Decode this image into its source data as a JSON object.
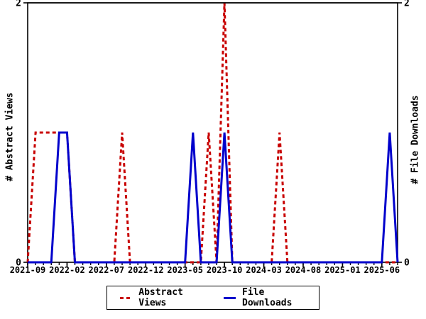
{
  "chart_data": {
    "type": "line",
    "title": "",
    "ylabel_left": "# Abstract Views",
    "ylabel_right": "# File Downloads",
    "ylim": [
      0,
      2
    ],
    "yticks": [
      0,
      2
    ],
    "grid": false,
    "legend_position": "bottom-center",
    "x": [
      "2021-09",
      "2021-10",
      "2021-11",
      "2021-12",
      "2022-01",
      "2022-02",
      "2022-03",
      "2022-04",
      "2022-05",
      "2022-06",
      "2022-07",
      "2022-08",
      "2022-09",
      "2022-10",
      "2022-11",
      "2022-12",
      "2023-01",
      "2023-02",
      "2023-03",
      "2023-04",
      "2023-05",
      "2023-06",
      "2023-07",
      "2023-08",
      "2023-09",
      "2023-10",
      "2023-11",
      "2023-12",
      "2024-01",
      "2024-02",
      "2024-03",
      "2024-04",
      "2024-05",
      "2024-06",
      "2024-07",
      "2024-08",
      "2024-09",
      "2024-10",
      "2024-11",
      "2024-12",
      "2025-01",
      "2025-02",
      "2025-03",
      "2025-04",
      "2025-05",
      "2025-06",
      "2025-07",
      "2025-08"
    ],
    "xticks": [
      {
        "index": 0,
        "label": "2021-09"
      },
      {
        "index": 5,
        "label": "2022-02"
      },
      {
        "index": 10,
        "label": "2022-07"
      },
      {
        "index": 15,
        "label": "2022-12"
      },
      {
        "index": 20,
        "label": "2023-05"
      },
      {
        "index": 25,
        "label": "2023-10"
      },
      {
        "index": 30,
        "label": "2024-03"
      },
      {
        "index": 35,
        "label": "2024-08"
      },
      {
        "index": 40,
        "label": "2025-01"
      },
      {
        "index": 45,
        "label": "2025-06"
      }
    ],
    "series": [
      {
        "name": "Abstract Views",
        "style": "dashed",
        "color": "#c80000",
        "values": [
          0,
          1,
          1,
          1,
          1,
          1,
          0,
          0,
          0,
          0,
          0,
          0,
          1,
          0,
          0,
          0,
          0,
          0,
          0,
          0,
          0,
          0,
          0,
          1,
          0,
          2,
          0,
          0,
          0,
          0,
          0,
          0,
          1,
          0,
          0,
          0,
          0,
          0,
          0,
          0,
          0,
          0,
          0,
          0,
          0,
          0,
          0,
          0
        ]
      },
      {
        "name": "File Downloads",
        "style": "solid",
        "color": "#0000cc",
        "values": [
          0,
          0,
          0,
          0,
          1,
          1,
          0,
          0,
          0,
          0,
          0,
          0,
          0,
          0,
          0,
          0,
          0,
          0,
          0,
          0,
          0,
          1,
          0,
          0,
          0,
          1,
          0,
          0,
          0,
          0,
          0,
          0,
          0,
          0,
          0,
          0,
          0,
          0,
          0,
          0,
          0,
          0,
          0,
          0,
          0,
          0,
          1,
          0
        ]
      }
    ],
    "frame_color": "#000000"
  }
}
